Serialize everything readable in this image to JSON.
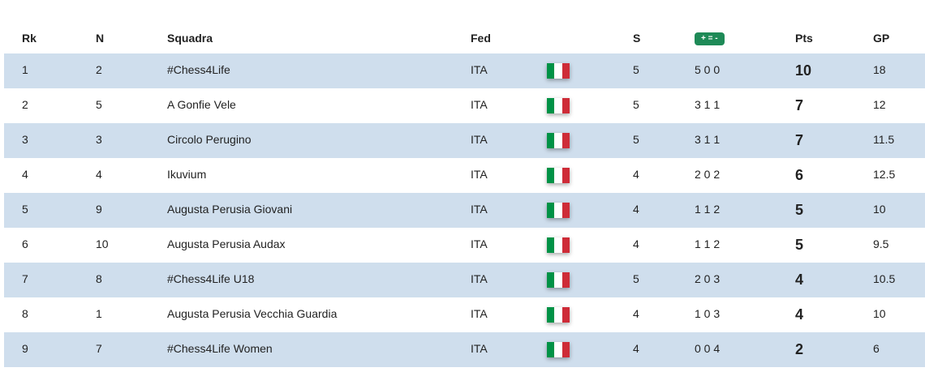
{
  "table": {
    "headers": [
      "Rk",
      "N",
      "Squadra",
      "Fed",
      "S",
      "+ = -",
      "Pts",
      "GP"
    ],
    "rows": [
      [
        1,
        2,
        "#Chess4Life",
        "ITA",
        5,
        "5 0 0",
        10,
        18
      ],
      [
        2,
        5,
        "A Gonfie Vele",
        "ITA",
        5,
        "3 1 1",
        7,
        12
      ],
      [
        3,
        3,
        "Circolo Perugino",
        "ITA",
        5,
        "3 1 1",
        7,
        11.5
      ],
      [
        4,
        4,
        "Ikuvium",
        "ITA",
        4,
        "2 0 2",
        6,
        12.5
      ],
      [
        5,
        9,
        "Augusta Perusia Giovani",
        "ITA",
        4,
        "1 1 2",
        5,
        10
      ],
      [
        6,
        10,
        "Augusta Perusia Audax",
        "ITA",
        4,
        "1 1 2",
        5,
        9.5
      ],
      [
        7,
        8,
        "#Chess4Life U18",
        "ITA",
        5,
        "2 0 3",
        4,
        10.5
      ],
      [
        8,
        1,
        "Augusta Perusia Vecchia Guardia",
        "ITA",
        4,
        "1 0 3",
        4,
        10
      ],
      [
        9,
        7,
        "#Chess4Life Women",
        "ITA",
        4,
        "0 0 4",
        2,
        6
      ]
    ]
  }
}
